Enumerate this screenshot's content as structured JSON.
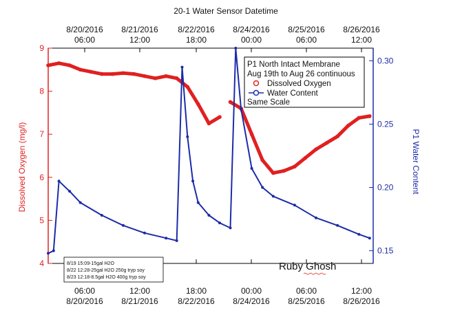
{
  "chart_data": {
    "type": "line",
    "title": "20-1 Water Sensor Datetime",
    "y_left_label": "Dissolved Oxygen (mg/l)",
    "y_right_label": "P1 Water Content",
    "y_left_range": [
      4,
      9
    ],
    "y_right_range": [
      0.14,
      0.31
    ],
    "y_left_ticks": [
      "4",
      "5",
      "6",
      "7",
      "8",
      "9"
    ],
    "y_right_ticks": [
      "0.15",
      "0.20",
      "0.25",
      "0.30"
    ],
    "top_axis_ticks": [
      {
        "date": "8/20/2016",
        "time": "06:00"
      },
      {
        "date": "8/21/2016",
        "time": "12:00"
      },
      {
        "date": "8/22/2016",
        "time": "18:00"
      },
      {
        "date": "8/24/2016",
        "time": "00:00"
      },
      {
        "date": "8/25/2016",
        "time": "06:00"
      },
      {
        "date": "8/26/2016",
        "time": "12:00"
      }
    ],
    "bottom_axis_ticks": [
      {
        "time": "06:00",
        "date": "8/20/2016"
      },
      {
        "time": "12:00",
        "date": "8/21/2016"
      },
      {
        "time": "18:00",
        "date": "8/22/2016"
      },
      {
        "time": "00:00",
        "date": "8/24/2016"
      },
      {
        "time": "06:00",
        "date": "8/25/2016"
      },
      {
        "time": "12:00",
        "date": "8/26/2016"
      }
    ],
    "legend": {
      "lines": [
        "P1 North Intact Membrane",
        "Aug 19th to Aug 26 continuous"
      ],
      "entries": [
        "Dissolved Oxygen",
        "Water Content"
      ],
      "footer": "Same Scale"
    },
    "notes": [
      "8/19 15:09-15gal H2O",
      "8/22 12:28-25gal H2O 250g tryp soy",
      "8/23 12:18-8.5gal H2O 400g tryp soy"
    ],
    "signature": "Ruby Ghosh",
    "series": [
      {
        "name": "Dissolved Oxygen",
        "axis": "left",
        "color": "#e02020",
        "x": [
          "2016-08-19 12:00",
          "2016-08-19 18:00",
          "2016-08-20 00:00",
          "2016-08-20 06:00",
          "2016-08-20 12:00",
          "2016-08-20 18:00",
          "2016-08-21 00:00",
          "2016-08-21 06:00",
          "2016-08-21 12:00",
          "2016-08-21 18:00",
          "2016-08-22 00:00",
          "2016-08-22 06:00",
          "2016-08-22 12:00",
          "2016-08-22 18:00",
          "2016-08-23 00:00",
          "2016-08-23 06:00",
          "2016-08-23 12:00"
        ],
        "y": [
          8.6,
          8.65,
          8.6,
          8.5,
          8.45,
          8.4,
          8.4,
          8.42,
          8.4,
          8.35,
          8.3,
          8.35,
          8.3,
          8.1,
          7.7,
          7.25,
          7.4
        ]
      },
      {
        "name": "Dissolved Oxygen",
        "axis": "left",
        "color": "#e02020",
        "x": [
          "2016-08-23 18:00",
          "2016-08-24 00:00",
          "2016-08-24 06:00",
          "2016-08-24 12:00",
          "2016-08-24 18:00",
          "2016-08-25 00:00",
          "2016-08-25 06:00",
          "2016-08-25 12:00",
          "2016-08-25 18:00",
          "2016-08-26 00:00",
          "2016-08-26 06:00",
          "2016-08-26 12:00",
          "2016-08-26 18:00",
          "2016-08-27 00:00"
        ],
        "y": [
          7.75,
          7.6,
          7.0,
          6.4,
          6.1,
          6.15,
          6.25,
          6.45,
          6.65,
          6.8,
          6.95,
          7.2,
          7.38,
          7.42
        ]
      },
      {
        "name": "Water Content",
        "axis": "right",
        "color": "#1c2ba8",
        "x": [
          "2016-08-19 12:00",
          "2016-08-19 15:00",
          "2016-08-19 18:00",
          "2016-08-20 00:00",
          "2016-08-20 06:00",
          "2016-08-20 18:00",
          "2016-08-21 06:00",
          "2016-08-21 18:00",
          "2016-08-22 06:00",
          "2016-08-22 12:00",
          "2016-08-22 15:00",
          "2016-08-22 18:00",
          "2016-08-22 21:00",
          "2016-08-23 00:00",
          "2016-08-23 06:00",
          "2016-08-23 12:00",
          "2016-08-23 18:00",
          "2016-08-23 21:00",
          "2016-08-24 00:00",
          "2016-08-24 06:00",
          "2016-08-24 12:00",
          "2016-08-24 18:00",
          "2016-08-25 06:00",
          "2016-08-25 18:00",
          "2016-08-26 06:00",
          "2016-08-26 18:00",
          "2016-08-27 00:00"
        ],
        "y": [
          0.148,
          0.15,
          0.205,
          0.197,
          0.188,
          0.178,
          0.17,
          0.164,
          0.16,
          0.158,
          0.295,
          0.24,
          0.205,
          0.188,
          0.178,
          0.172,
          0.168,
          0.31,
          0.262,
          0.215,
          0.2,
          0.193,
          0.186,
          0.176,
          0.17,
          0.163,
          0.16
        ]
      }
    ]
  }
}
